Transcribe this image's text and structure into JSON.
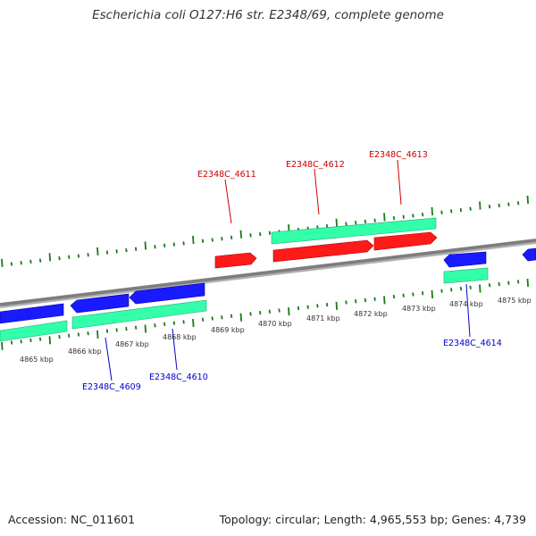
{
  "title": "Escherichia coli O127:H6 str. E2348/69, complete genome",
  "footer": {
    "accession": "Accession: NC_011601",
    "summary": "Topology: circular; Length: 4,965,553 bp; Genes: 4,739"
  },
  "colors": {
    "backbone": "#8a8a8a",
    "forward_cds": "#ff1a1a",
    "reverse_cds": "#1a1aff",
    "gene": "#33ffaa",
    "tick": "#1a7a1a",
    "forward_label": "#cc0000",
    "reverse_label": "#0000cc"
  },
  "diagram": {
    "kbp_labels": [
      "4865 kbp",
      "4866 kbp",
      "4867 kbp",
      "4868 kbp",
      "4869 kbp",
      "4870 kbp",
      "4871 kbp",
      "4872 kbp",
      "4873 kbp",
      "4874 kbp",
      "4875 kbp"
    ],
    "forward_labels": [
      "E2348C_4611",
      "E2348C_4612",
      "E2348C_4613"
    ],
    "reverse_labels": [
      "E2348C_4609",
      "E2348C_4610",
      "E2348C_4614"
    ]
  }
}
